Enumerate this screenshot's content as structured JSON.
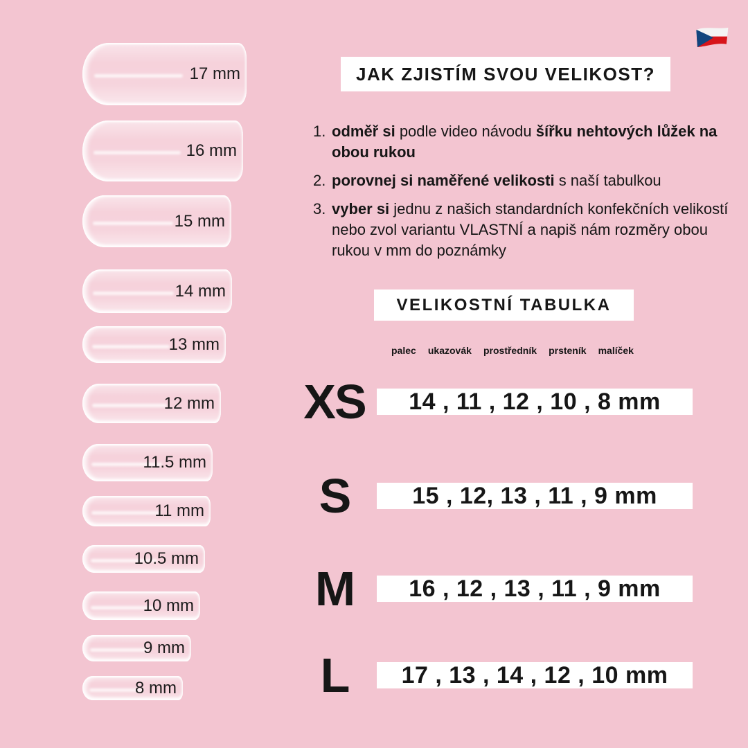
{
  "colors": {
    "background": "#f3c5d1",
    "text": "#161616",
    "panel": "#ffffff",
    "flag_white": "#f4f4f4",
    "flag_red": "#d7141a",
    "flag_blue": "#11457e"
  },
  "flag": {
    "name": "czech-flag"
  },
  "nails": [
    {
      "label": "17 mm"
    },
    {
      "label": "16 mm"
    },
    {
      "label": "15 mm"
    },
    {
      "label": "14 mm"
    },
    {
      "label": "13 mm"
    },
    {
      "label": "12 mm"
    },
    {
      "label": "11.5 mm"
    },
    {
      "label": "11 mm"
    },
    {
      "label": "10.5 mm"
    },
    {
      "label": "10 mm"
    },
    {
      "label": "9 mm"
    },
    {
      "label": "8 mm"
    }
  ],
  "how_to": {
    "title": "JAK ZJISTÍM SVOU VELIKOST?",
    "steps": [
      {
        "num": "1.",
        "segments": [
          {
            "t": "odměř si ",
            "b": true
          },
          {
            "t": "podle video návodu ",
            "b": false
          },
          {
            "t": "šířku nehtových lůžek na obou rukou",
            "b": true
          }
        ]
      },
      {
        "num": "2.",
        "segments": [
          {
            "t": "porovnej si naměřené velikosti ",
            "b": true
          },
          {
            "t": "s naší tabulkou",
            "b": false
          }
        ]
      },
      {
        "num": "3.",
        "segments": [
          {
            "t": "vyber si ",
            "b": true
          },
          {
            "t": "jednu z našich standardních konfekčních velikostí nebo zvol variantu VLASTNÍ a napiš nám rozměry obou rukou v mm do poznámky",
            "b": false
          }
        ]
      }
    ]
  },
  "size_table": {
    "title": "VELIKOSTNÍ TABULKA",
    "fingers": [
      "palec",
      "ukazovák",
      "prostředník",
      "prsteník",
      "malíček"
    ],
    "rows": [
      {
        "size": "XS",
        "values": "14 , 11 , 12 , 10 , 8 mm"
      },
      {
        "size": "S",
        "values": "15 , 12, 13 , 11 , 9 mm"
      },
      {
        "size": "M",
        "values": "16 , 12 , 13 , 11 , 9 mm"
      },
      {
        "size": "L",
        "values": "17 , 13 , 14 , 12 , 10 mm"
      }
    ]
  }
}
